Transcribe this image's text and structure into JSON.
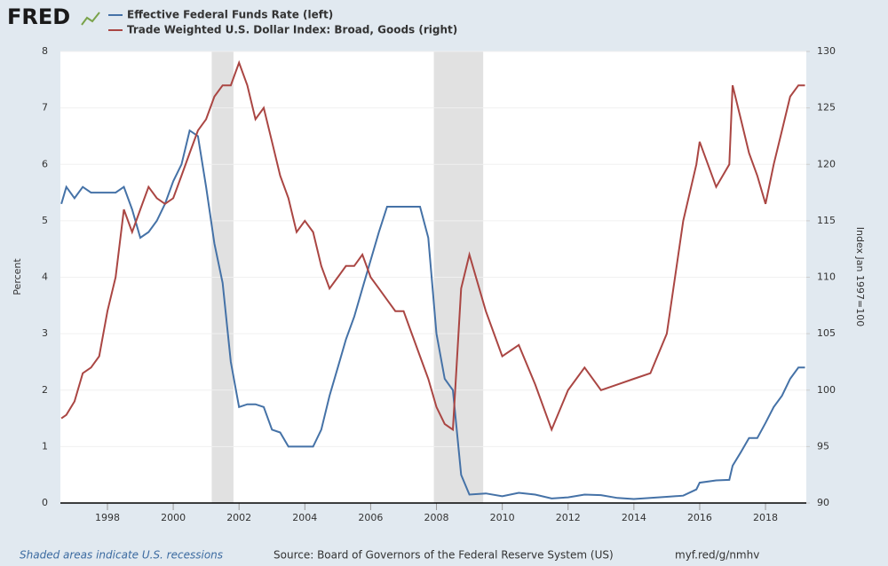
{
  "header": {
    "logo": "FRED"
  },
  "footer": {
    "note": "Shaded areas indicate U.S. recessions",
    "source": "Source: Board of Governors of the Federal Reserve System (US)",
    "link": "myf.red/g/nmhv"
  },
  "chart_data": {
    "type": "line",
    "y_label": "Percent",
    "y2_label": "Index Jan 1997=100",
    "x": [
      1996.6,
      1996.75,
      1997.0,
      1997.25,
      1997.5,
      1997.75,
      1998.0,
      1998.25,
      1998.5,
      1998.75,
      1999.0,
      1999.25,
      1999.5,
      1999.75,
      2000.0,
      2000.25,
      2000.5,
      2000.75,
      2001.0,
      2001.25,
      2001.5,
      2001.75,
      2002.0,
      2002.25,
      2002.5,
      2002.75,
      2003.0,
      2003.25,
      2003.5,
      2003.75,
      2004.0,
      2004.25,
      2004.5,
      2004.75,
      2005.0,
      2005.25,
      2005.5,
      2005.75,
      2006.0,
      2006.25,
      2006.5,
      2006.75,
      2007.0,
      2007.25,
      2007.5,
      2007.75,
      2008.0,
      2008.25,
      2008.5,
      2008.75,
      2009.0,
      2009.5,
      2010.0,
      2010.5,
      2011.0,
      2011.5,
      2012.0,
      2012.5,
      2013.0,
      2013.5,
      2014.0,
      2014.5,
      2015.0,
      2015.5,
      2015.9,
      2016.0,
      2016.5,
      2016.9,
      2017.0,
      2017.25,
      2017.5,
      2017.75,
      2018.0,
      2018.25,
      2018.5,
      2018.75,
      2019.0,
      2019.2
    ],
    "series": [
      {
        "name": "Effective Federal Funds Rate (left)",
        "color": "#4572a7",
        "axis": "y",
        "values": [
          5.3,
          5.6,
          5.4,
          5.6,
          5.5,
          5.5,
          5.5,
          5.5,
          5.6,
          5.2,
          4.7,
          4.8,
          5.0,
          5.3,
          5.7,
          6.0,
          6.6,
          6.5,
          5.6,
          4.6,
          3.9,
          2.5,
          1.7,
          1.75,
          1.75,
          1.7,
          1.3,
          1.25,
          1.0,
          1.0,
          1.0,
          1.0,
          1.3,
          1.9,
          2.4,
          2.9,
          3.3,
          3.8,
          4.3,
          4.8,
          5.25,
          5.25,
          5.25,
          5.25,
          5.25,
          4.7,
          3.0,
          2.2,
          2.0,
          0.5,
          0.15,
          0.17,
          0.12,
          0.18,
          0.15,
          0.08,
          0.1,
          0.15,
          0.14,
          0.09,
          0.07,
          0.09,
          0.11,
          0.13,
          0.24,
          0.36,
          0.4,
          0.41,
          0.66,
          0.9,
          1.15,
          1.15,
          1.42,
          1.7,
          1.9,
          2.2,
          2.4,
          2.4
        ]
      },
      {
        "name": "Trade Weighted U.S. Dollar Index: Broad, Goods (right)",
        "color": "#aa4643",
        "axis": "y2",
        "values": [
          97.5,
          97.8,
          99,
          101.5,
          102,
          103,
          107,
          110,
          116,
          114,
          116,
          118,
          117,
          116.5,
          117,
          119,
          121,
          123,
          124,
          126,
          127,
          127,
          129,
          127,
          124,
          125,
          122,
          119,
          117,
          114,
          115,
          114,
          111,
          109,
          110,
          111,
          111,
          112,
          110,
          109,
          108,
          107,
          107,
          105,
          103,
          101,
          98.5,
          97,
          96.5,
          109,
          112,
          107,
          103,
          104,
          100.5,
          96.5,
          100,
          102,
          100,
          100.5,
          101,
          101.5,
          105,
          115,
          120,
          122,
          118,
          120,
          127,
          124,
          121,
          119,
          116.5,
          120,
          123,
          126,
          127,
          127
        ]
      }
    ],
    "recessions": [
      [
        2001.17,
        2001.83
      ],
      [
        2007.92,
        2009.42
      ]
    ],
    "recession_color": "#e1e1e1",
    "xlim": [
      1996.57,
      2019.24
    ],
    "xticks": [
      1998,
      2000,
      2002,
      2004,
      2006,
      2008,
      2010,
      2012,
      2014,
      2016,
      2018
    ],
    "ylim": [
      0,
      8
    ],
    "yticks": [
      0,
      1,
      2,
      3,
      4,
      5,
      6,
      7,
      8
    ],
    "y2lim": [
      90,
      130
    ],
    "y2ticks": [
      90,
      95,
      100,
      105,
      110,
      115,
      120,
      125,
      130
    ],
    "grid": true
  }
}
